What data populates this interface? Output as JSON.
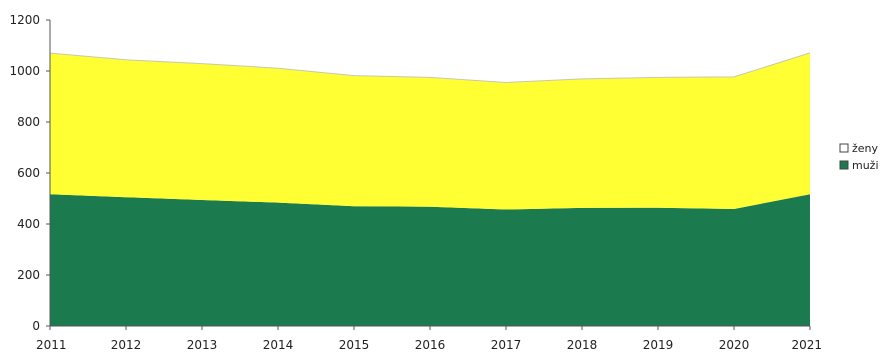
{
  "chart_data": {
    "type": "area",
    "stacked": true,
    "x": [
      "2011",
      "2012",
      "2013",
      "2014",
      "2015",
      "2016",
      "2017",
      "2018",
      "2019",
      "2020",
      "2021"
    ],
    "ylim": [
      0,
      1200
    ],
    "yticks": [
      "0",
      "200",
      "400",
      "600",
      "800",
      "1000",
      "1200"
    ],
    "grid": false,
    "legend_position": "right",
    "series": [
      {
        "name": "muži",
        "color": "#1b7a4e",
        "values": [
          517,
          505,
          494,
          484,
          470,
          468,
          457,
          463,
          464,
          459,
          517
        ]
      },
      {
        "name": "ženy",
        "color": "#ffff33",
        "values": [
          553,
          539,
          535,
          527,
          512,
          507,
          498,
          506,
          511,
          518,
          554
        ]
      }
    ],
    "totals": [
      1070,
      1044,
      1029,
      1011,
      982,
      975,
      955,
      969,
      975,
      977,
      1071
    ],
    "legend": [
      {
        "label": "ženy",
        "marker": "white-square"
      },
      {
        "label": "muži",
        "marker": "green-square"
      }
    ]
  }
}
